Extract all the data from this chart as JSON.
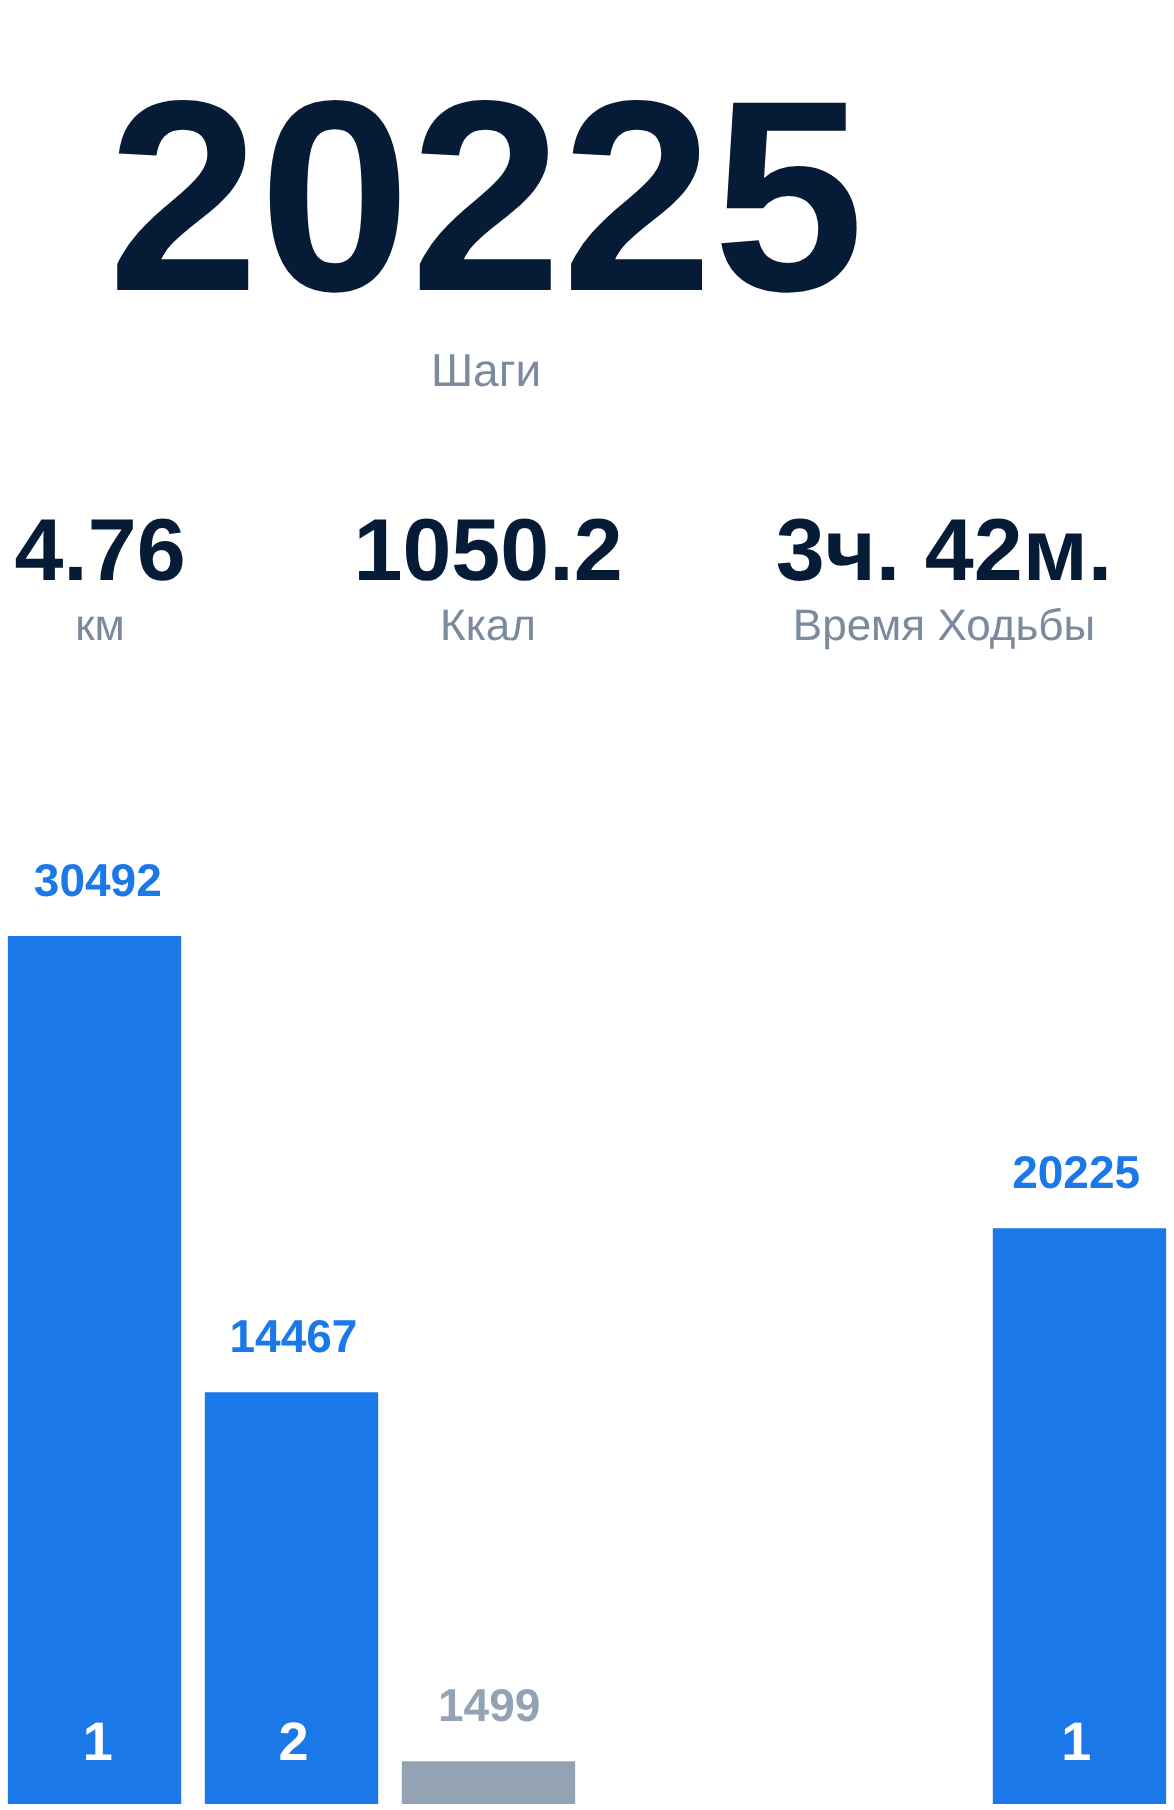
{
  "chart_data": {
    "type": "bar",
    "title": "20225",
    "subtitle": "Шаги",
    "annotations": [
      "4.76",
      "км",
      "1050.2",
      "Ккал",
      "3ч. 42м.",
      "Время Ходьбы"
    ],
    "categories": [
      "1",
      "2",
      null,
      null,
      null,
      "1"
    ],
    "values": [
      30492,
      14467,
      1499,
      null,
      null,
      20225
    ],
    "colors": [
      "#1a78e8",
      "#1a78e8",
      "#94a3b4",
      null,
      null,
      "#1a78e8"
    ],
    "data_labels": true
  }
}
